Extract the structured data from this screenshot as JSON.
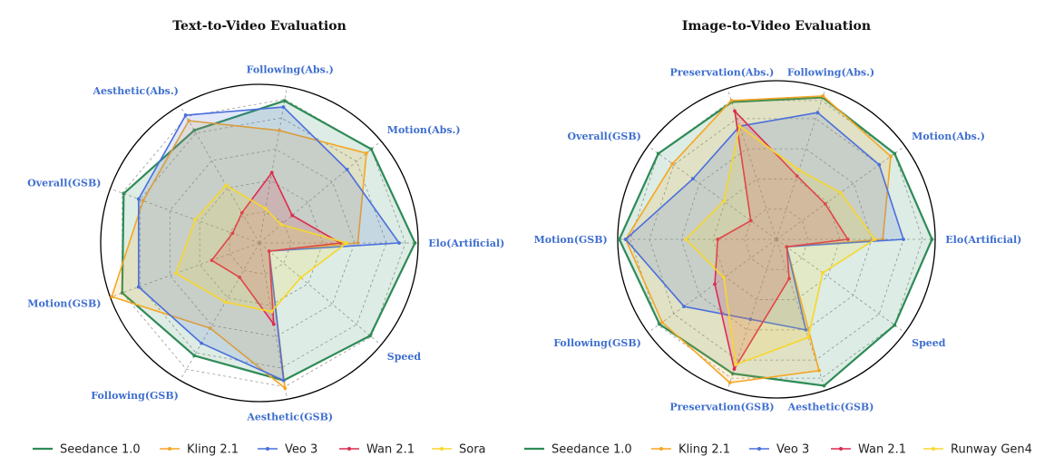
{
  "chart_data": [
    {
      "type": "radar",
      "title": "Text-to-Video Evaluation",
      "axes": [
        "Elo(Artificial)",
        "Motion(Abs.)",
        "Following(Abs.)",
        "Aesthetic(Abs.)",
        "Overall(GSB)",
        "Motion(GSB)",
        "Following(GSB)",
        "Aesthetic(GSB)",
        "Speed"
      ],
      "range": [
        0,
        1
      ],
      "grid": true,
      "series": [
        {
          "name": "Seedance 1.0",
          "color": "#2e8b57",
          "values": [
            0.98,
            0.92,
            0.91,
            0.82,
            0.91,
            0.92,
            0.82,
            0.88,
            0.91
          ]
        },
        {
          "name": "Kling 2.1",
          "color": "#f5a623",
          "values": [
            0.62,
            0.88,
            0.72,
            0.89,
            0.78,
            0.99,
            0.62,
            0.93,
            0.08
          ]
        },
        {
          "name": "Veo 3",
          "color": "#4a6fdc",
          "values": [
            0.88,
            0.72,
            0.87,
            0.93,
            0.81,
            0.81,
            0.73,
            0.88,
            0.08
          ]
        },
        {
          "name": "Wan 2.1",
          "color": "#dc2c4e",
          "values": [
            0.51,
            0.27,
            0.45,
            0.22,
            0.18,
            0.32,
            0.25,
            0.52,
            0.08
          ]
        },
        {
          "name": "Sora",
          "color": "#f7d72b",
          "values": [
            0.55,
            0.18,
            0.22,
            0.42,
            0.43,
            0.56,
            0.43,
            0.44,
            0.34
          ]
        }
      ]
    },
    {
      "type": "radar",
      "title": "Image-to-Video Evaluation",
      "axes": [
        "Elo(Artificial)",
        "Motion(Abs.)",
        "Following(Abs.)",
        "Preservation(Abs.)",
        "Overall(GSB)",
        "Motion(GSB)",
        "Following(GSB)",
        "Preservation(GSB)",
        "Aesthetic(GSB)",
        "Speed"
      ],
      "range": [
        0,
        1
      ],
      "grid": true,
      "series": [
        {
          "name": "Seedance 1.0",
          "color": "#2e8b57",
          "values": [
            0.98,
            0.92,
            0.94,
            0.91,
            0.92,
            0.99,
            0.91,
            0.89,
            0.97,
            0.92
          ]
        },
        {
          "name": "Kling 2.1",
          "color": "#f5a623",
          "values": [
            0.67,
            0.89,
            0.95,
            0.92,
            0.81,
            0.95,
            0.89,
            0.95,
            0.87,
            0.08
          ]
        },
        {
          "name": "Veo 3",
          "color": "#4a6fdc",
          "values": [
            0.8,
            0.8,
            0.84,
            0.75,
            0.65,
            0.95,
            0.72,
            0.53,
            0.6,
            0.08
          ]
        },
        {
          "name": "Wan 2.1",
          "color": "#dc2c4e",
          "values": [
            0.45,
            0.38,
            0.42,
            0.85,
            0.2,
            0.37,
            0.48,
            0.86,
            0.26,
            0.08
          ]
        },
        {
          "name": "Runway Gen4",
          "color": "#f7d72b",
          "values": [
            0.62,
            0.5,
            0.46,
            0.75,
            0.41,
            0.57,
            0.41,
            0.83,
            0.65,
            0.36
          ]
        }
      ]
    }
  ]
}
